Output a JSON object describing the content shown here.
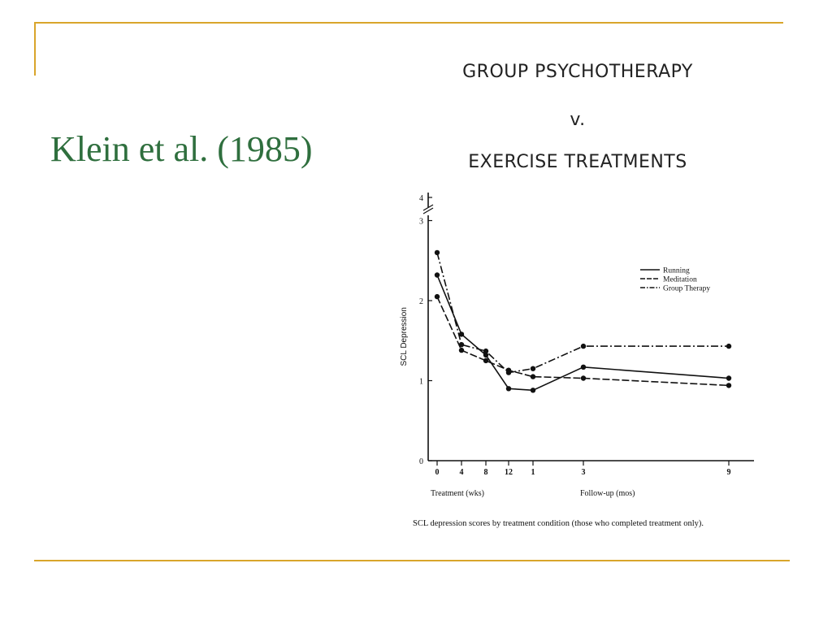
{
  "slide": {
    "title": "Klein et al. (1985)",
    "accent_color": "#d9a52b",
    "title_color": "#2f6f3e"
  },
  "figure": {
    "heading_line1": "GROUP PSYCHOTHERAPY",
    "heading_line2": "v.",
    "heading_line3": "EXERCISE TREATMENTS",
    "caption": "SCL depression scores by treatment condition (those who completed treatment only)."
  },
  "chart_data": {
    "type": "line",
    "ylabel": "SCL Depression",
    "ylim": [
      0,
      3
    ],
    "y_ticks": [
      "0",
      "1",
      "2",
      "3",
      "4"
    ],
    "categories": [
      "0",
      "4",
      "8",
      "12",
      "1",
      "3",
      "9"
    ],
    "x_group_labels": [
      "Treatment (wks)",
      "Follow-up (mos)"
    ],
    "grid": false,
    "legend_position": "right",
    "series": [
      {
        "name": "Running",
        "dash": "solid",
        "values": [
          2.32,
          1.58,
          1.32,
          0.9,
          0.88,
          1.17,
          1.03
        ]
      },
      {
        "name": "Meditation",
        "dash": "dashed",
        "values": [
          2.05,
          1.38,
          1.25,
          1.13,
          1.05,
          1.03,
          0.94
        ]
      },
      {
        "name": "Group Therapy",
        "dash": "dashdot",
        "values": [
          2.6,
          1.45,
          1.37,
          1.1,
          1.15,
          1.43,
          1.43
        ]
      }
    ]
  }
}
